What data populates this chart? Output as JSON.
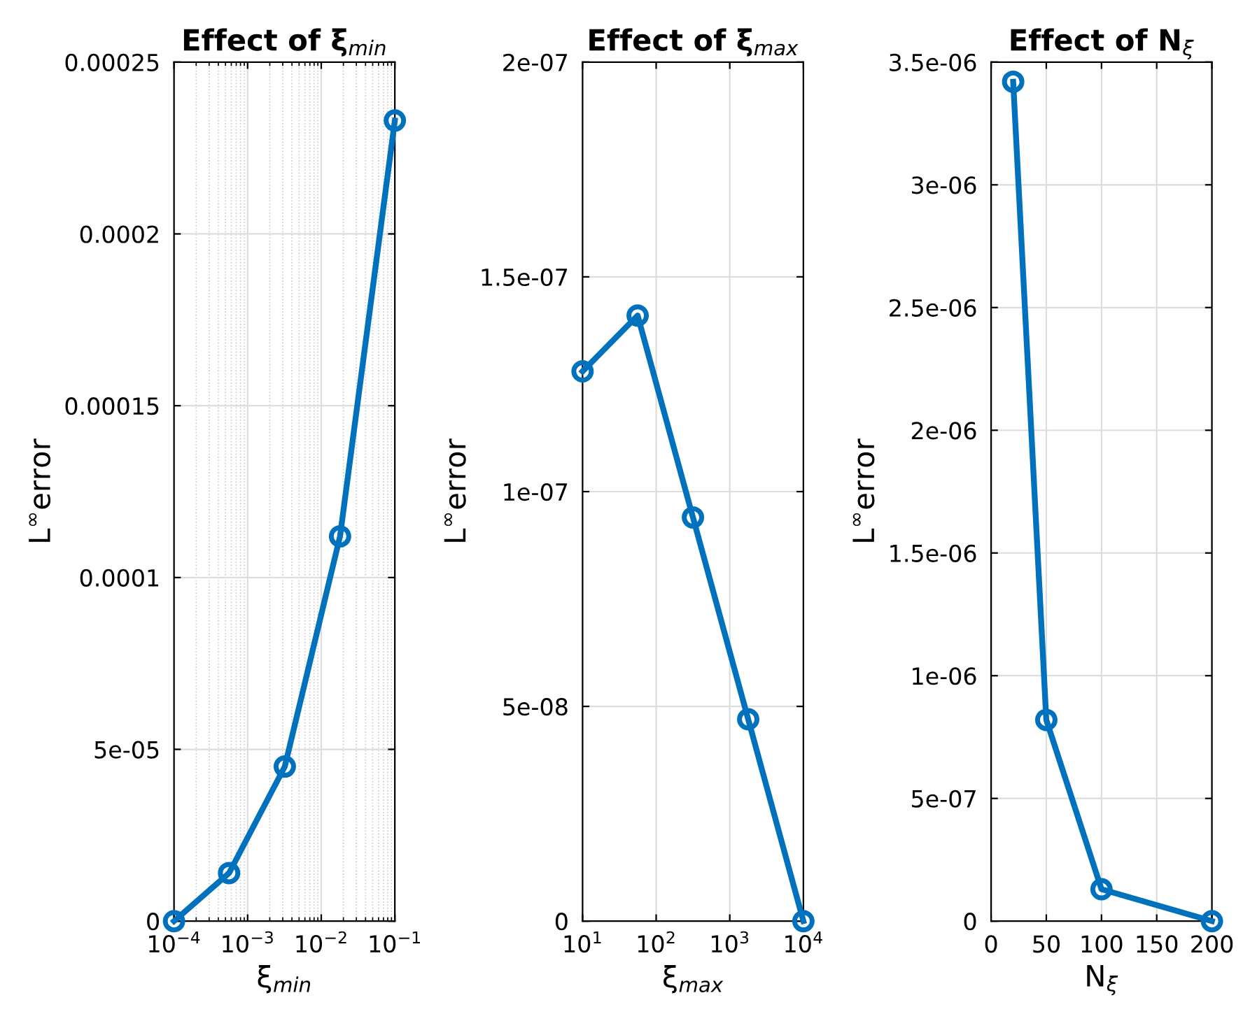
{
  "chart_data": [
    {
      "type": "line",
      "title": "Effect of ξ$_{min}$",
      "xlabel": "ξ$_{min}$",
      "ylabel": "L$^{∞}$error",
      "log": "x",
      "grid": true,
      "marker": "circle",
      "line_style": "solid",
      "x": [
        0.0001,
        0.00056,
        0.0032,
        0.018,
        0.1
      ],
      "series": [
        {
          "color": "#0072bd",
          "values": [
            0,
            1.4e-05,
            4.5e-05,
            0.000112,
            0.000233
          ]
        }
      ],
      "xlim": [
        0.0001,
        0.1
      ],
      "ylim": [
        0,
        0.00025
      ],
      "xticks": [
        {
          "value": 0.0001,
          "label": "10$^{−4}$"
        },
        {
          "value": 0.001,
          "label": "10$^{−3}$"
        },
        {
          "value": 0.01,
          "label": "10$^{−2}$"
        },
        {
          "value": 0.1,
          "label": "10$^{−1}$"
        }
      ],
      "yticks": [
        {
          "value": 0,
          "label": "0"
        },
        {
          "value": 5e-05,
          "label": "5e-05"
        },
        {
          "value": 0.0001,
          "label": "0.0001"
        },
        {
          "value": 0.00015,
          "label": "0.00015"
        },
        {
          "value": 0.0002,
          "label": "0.0002"
        },
        {
          "value": 0.00025,
          "label": "0.00025"
        }
      ]
    },
    {
      "type": "line",
      "title": "Effect of ξ$_{max}$",
      "xlabel": "ξ$_{max}$",
      "ylabel": "L$^{∞}$error",
      "log": "x",
      "grid": true,
      "marker": "circle",
      "line_style": "solid",
      "x": [
        10,
        56,
        316,
        1780,
        10000
      ],
      "series": [
        {
          "color": "#0072bd",
          "values": [
            1.28e-07,
            1.41e-07,
            9.4e-08,
            4.7e-08,
            0
          ]
        }
      ],
      "xlim": [
        10,
        10000
      ],
      "ylim": [
        0,
        2e-07
      ],
      "xticks": [
        {
          "value": 10,
          "label": "10$^{1}$"
        },
        {
          "value": 100,
          "label": "10$^{2}$"
        },
        {
          "value": 1000,
          "label": "10$^{3}$"
        },
        {
          "value": 10000,
          "label": "10$^{4}$"
        }
      ],
      "yticks": [
        {
          "value": 0,
          "label": "0"
        },
        {
          "value": 5e-08,
          "label": "5e-08"
        },
        {
          "value": 1e-07,
          "label": "1e-07"
        },
        {
          "value": 1.5e-07,
          "label": "1.5e-07"
        },
        {
          "value": 2e-07,
          "label": "2e-07"
        }
      ]
    },
    {
      "type": "line",
      "title": "Effect of N$_{ξ}$",
      "xlabel": "N$_{ξ}$",
      "ylabel": "L$^{∞}$error",
      "grid": true,
      "marker": "circle",
      "line_style": "solid",
      "x": [
        20,
        50,
        100,
        200
      ],
      "series": [
        {
          "color": "#0072bd",
          "values": [
            3.42e-06,
            8.2e-07,
            1.3e-07,
            0
          ]
        }
      ],
      "xlim": [
        0,
        200
      ],
      "ylim": [
        0,
        3.5e-06
      ],
      "xticks": [
        0,
        50,
        100,
        150,
        200
      ],
      "yticks": [
        {
          "value": 0,
          "label": "0"
        },
        {
          "value": 5e-07,
          "label": "5e-07"
        },
        {
          "value": 1e-06,
          "label": "1e-06"
        },
        {
          "value": 1.5e-06,
          "label": "1.5e-06"
        },
        {
          "value": 2e-06,
          "label": "2e-06"
        },
        {
          "value": 2.5e-06,
          "label": "2.5e-06"
        },
        {
          "value": 3e-06,
          "label": "3e-06"
        },
        {
          "value": 3.5e-06,
          "label": "3.5e-06"
        }
      ]
    }
  ]
}
